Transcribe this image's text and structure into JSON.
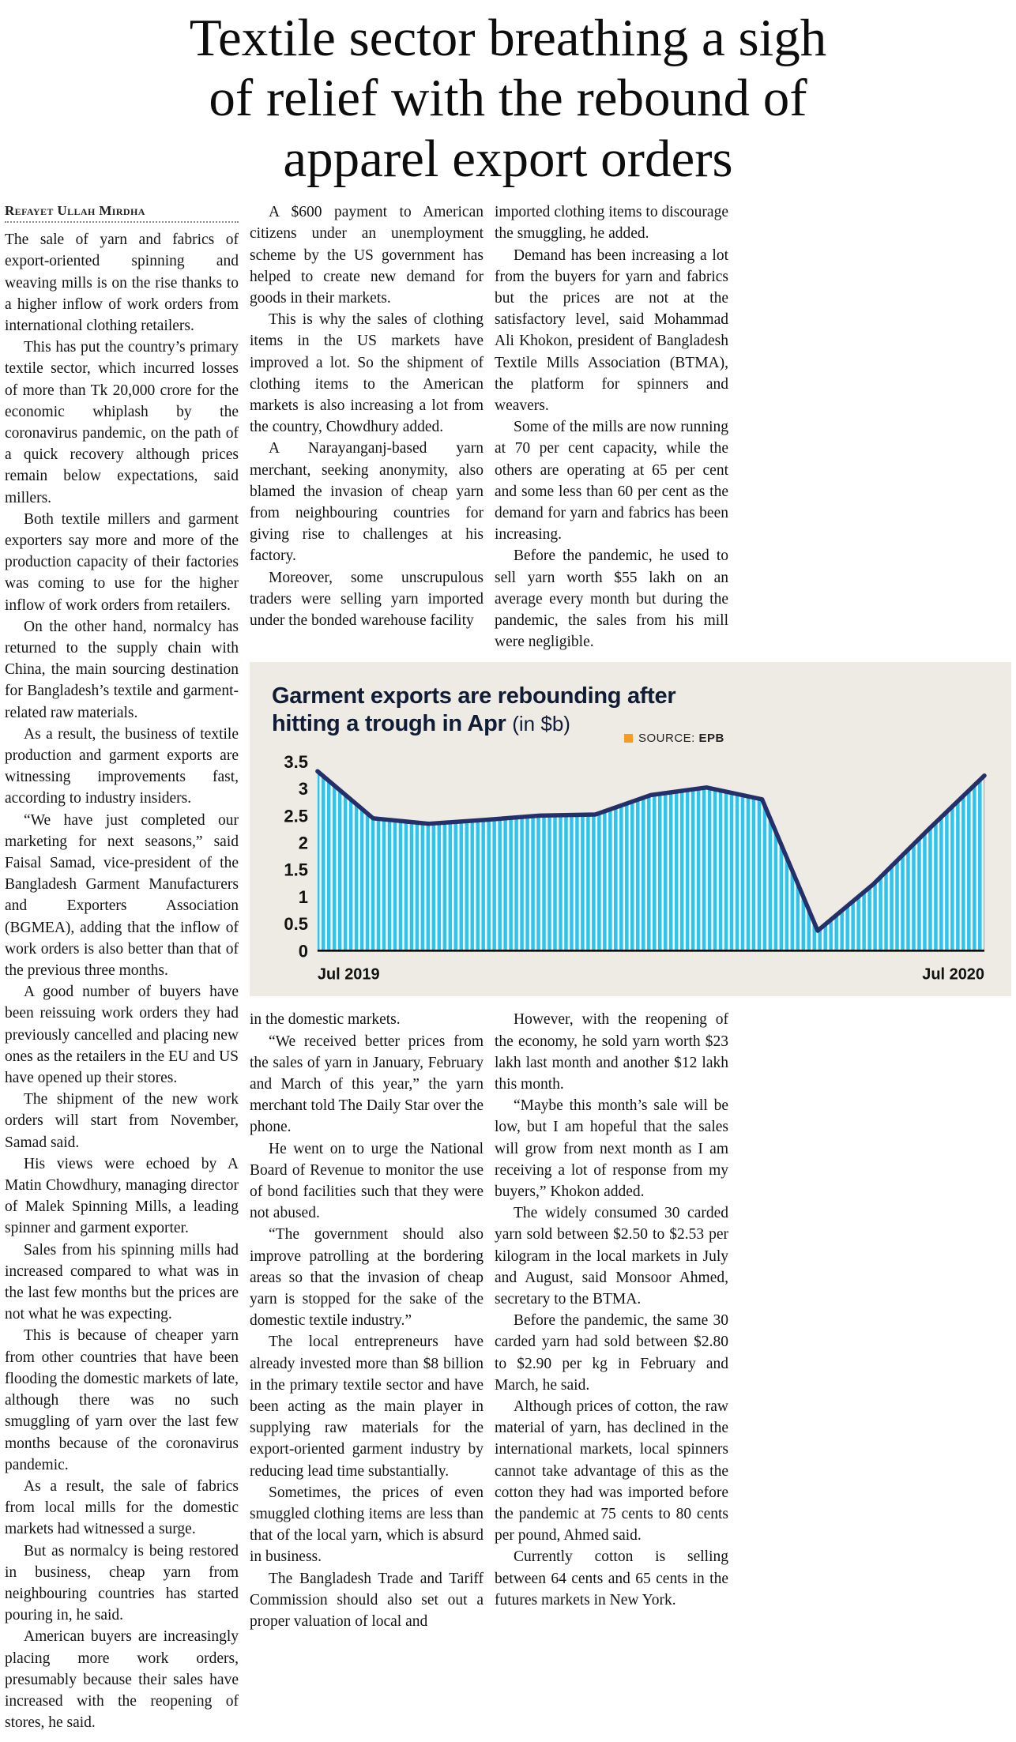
{
  "page": {
    "headline": {
      "line1": "Textile sector breathing a sigh",
      "line2": "of relief with the rebound of",
      "line3": "apparel export orders"
    },
    "byline": "Refayet Ullah Mirdha"
  },
  "article": {
    "col1": [
      "The sale of yarn and fabrics of export-oriented spinning and weaving mills is on the rise thanks to a higher inflow of work orders from international clothing retailers.",
      "This has put the country’s primary textile sector, which incurred losses of more than Tk 20,000 crore for the economic whiplash by the coronavirus pandemic, on the path of a quick recovery although prices remain below expectations, said millers.",
      "Both textile millers and garment exporters say more and more of the production capacity of their factories was coming to use for the higher inflow of work orders from retailers.",
      "On the other hand, normalcy has returned to the supply chain with China, the main sourcing destination for Bangladesh’s textile and garment-related raw materials.",
      "As a result, the business of textile production and garment exports are witnessing improvements fast, according to industry insiders.",
      "“We have just completed our marketing for next seasons,” said Faisal Samad, vice-president of the Bangladesh Garment Manufacturers and Exporters Association (BGMEA), adding that the inflow of work orders is also better than that of the previous three months.",
      "A good number of buyers have been reissuing work orders they had previously cancelled and placing new ones as the retailers in the EU and US have opened up their stores.",
      "The shipment of the new work orders will start from November, Samad said.",
      "His views were echoed by A Matin Chowdhury, managing director of Malek Spinning Mills, a leading spinner and garment exporter.",
      "Sales from his spinning mills had increased compared to what was in the last few months but the prices are not what he was expecting.",
      "This is because of cheaper yarn from other countries that have been flooding the domestic markets of late, although there was no such smuggling of yarn over the last few months because of the coronavirus pandemic.",
      "As a result, the sale of fabrics from local mills for the domestic markets had witnessed a surge.",
      "But as normalcy is being restored in business, cheap yarn from neighbouring countries has started pouring in, he said.",
      "American buyers are increasingly placing more work orders, presumably because their sales have increased with the reopening of stores, he said."
    ],
    "col2_top": [
      "A $600 payment to American citizens under an unemployment scheme by the US government has helped to create new demand for goods in their markets.",
      "This is why the sales of clothing items in the US markets have improved a lot. So the shipment of clothing items to the American markets is also increasing a lot from the country, Chowdhury added.",
      "A Narayanganj-based yarn merchant, seeking anonymity, also blamed the invasion of cheap yarn from neighbouring countries for giving rise to challenges at his factory.",
      "Moreover, some unscrupulous traders were selling yarn imported under the bonded warehouse facility"
    ],
    "col3_top": [
      "imported clothing items to discourage the smuggling, he added.",
      "Demand has been increasing a lot from the buyers for yarn and fabrics but the prices are not at the satisfactory level, said Mohammad Ali Khokon, president of Bangladesh Textile Mills Association (BTMA), the platform for spinners and weavers.",
      "Some of the mills are now running at 70 per cent capacity, while the others are operating at 65 per cent and some less than 60 per cent as the demand for yarn and fabrics has been increasing.",
      "Before the pandemic, he used to sell yarn worth $55 lakh on an average every month but during the pandemic, the sales from his mill were negligible."
    ],
    "col2_bottom": [
      "in the domestic markets.",
      "“We received better prices from the sales of yarn in January, February and March of this year,” the yarn merchant told The Daily Star over the phone.",
      "He went on to urge the National Board of Revenue to monitor the use of bond facilities such that they were not abused.",
      "“The government should also improve patrolling at the bordering areas so that the invasion of cheap yarn is stopped for the sake of the domestic textile industry.”",
      "The local entrepreneurs have already invested more than $8 billion in the primary textile sector and have been acting as the main player in supplying raw materials for the export-oriented garment industry by reducing lead time substantially.",
      "Sometimes, the prices of even smuggled clothing items are less than that of the local yarn, which is absurd in business.",
      "The Bangladesh Trade and Tariff Commission should also set out a proper valuation of local and"
    ],
    "col3_bottom": [
      "However, with the reopening of the economy, he sold yarn worth $23 lakh last month and another $12 lakh this month.",
      "“Maybe this month’s sale will be low, but I am hopeful that the sales will grow from next month as I am receiving a lot of response from my buyers,” Khokon added.",
      "The widely consumed 30 carded yarn sold between $2.50 to $2.53 per kilogram in the local markets in July and August, said Monsoor Ahmed, secretary to the BTMA.",
      "Before the pandemic, the same 30 carded yarn had sold between $2.80 to $2.90 per kg in February and March, he said.",
      "Although prices of cotton, the raw material of yarn, has declined in the international markets, local spinners cannot take advantage of this as the cotton they had was imported before the pandemic at 75 cents to 80 cents per pound, Ahmed said.",
      "Currently cotton is selling between 64 cents and 65 cents in the futures markets in New York."
    ]
  },
  "chart_data": {
    "type": "area",
    "title_line1": "Garment exports are rebounding after",
    "title_line2": "hitting a trough in Apr",
    "title_unit": "(in $b)",
    "source_label": "SOURCE:",
    "source_value": "EPB",
    "x": [
      "Jul 2019",
      "Aug 2019",
      "Sep 2019",
      "Oct 2019",
      "Nov 2019",
      "Dec 2019",
      "Jan 2020",
      "Feb 2020",
      "Mar 2020",
      "Apr 2020",
      "May 2020",
      "Jun 2020",
      "Jul 2020"
    ],
    "values": [
      3.32,
      2.45,
      2.35,
      2.42,
      2.5,
      2.52,
      2.88,
      3.02,
      2.8,
      0.37,
      1.23,
      2.25,
      3.24
    ],
    "ylim": [
      0,
      3.5
    ],
    "yticks": [
      "0",
      "0.5",
      "1",
      "1.5",
      "2",
      "2.5",
      "3",
      "3.5"
    ],
    "xtick_labels_shown": [
      "Jul 2019",
      "Jul 2020"
    ],
    "grid": false,
    "legend": "none",
    "colors": {
      "stripe": "#2fc4ee",
      "line": "#25306b",
      "panel_bg": "#edebe3",
      "source_square": "#f59a23",
      "title": "#101b35"
    }
  }
}
